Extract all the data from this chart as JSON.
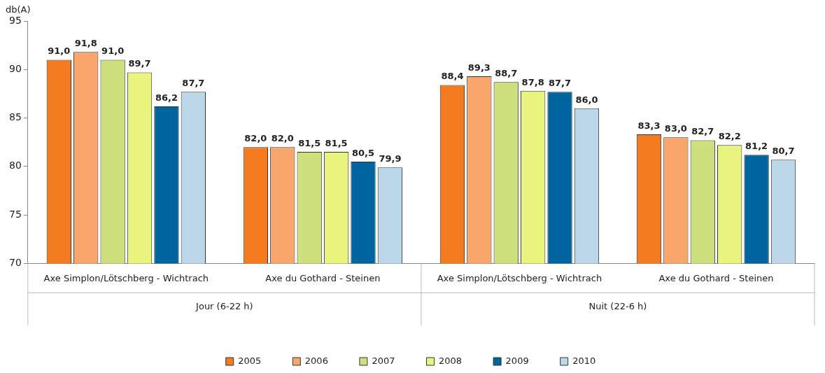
{
  "chart_data": {
    "type": "bar",
    "ylabel": "db(A)",
    "categories": [
      "Axe Simplon/Lötschberg - Wichtrach",
      "Axe du Gothard - Steinen",
      "Axe Simplon/Lötschberg - Wichtrach",
      "Axe du Gothard - Steinen"
    ],
    "annotations": [
      "Jour (6-22 h)",
      "Nuit (22-6 h)"
    ],
    "series": [
      {
        "name": "2005",
        "color": "#f47b20",
        "values": [
          91.0,
          82.0,
          88.4,
          83.3
        ],
        "value_labels": [
          "91,0",
          "82,0",
          "88,4",
          "83,3"
        ]
      },
      {
        "name": "2006",
        "color": "#f9a66c",
        "values": [
          91.8,
          82.0,
          89.3,
          83.0
        ],
        "value_labels": [
          "91,8",
          "82,0",
          "89,3",
          "83,0"
        ]
      },
      {
        "name": "2007",
        "color": "#cde07c",
        "values": [
          91.0,
          81.5,
          88.7,
          82.7
        ],
        "value_labels": [
          "91,0",
          "81,5",
          "88,7",
          "82,7"
        ]
      },
      {
        "name": "2008",
        "color": "#e9f47e",
        "values": [
          89.7,
          81.5,
          87.8,
          82.2
        ],
        "value_labels": [
          "89,7",
          "81,5",
          "87,8",
          "82,2"
        ]
      },
      {
        "name": "2009",
        "color": "#00649e",
        "values": [
          86.2,
          80.5,
          87.7,
          81.2
        ],
        "value_labels": [
          "86,2",
          "80,5",
          "87,7",
          "81,2"
        ]
      },
      {
        "name": "2010",
        "color": "#bcd8e8",
        "values": [
          87.7,
          79.9,
          86.0,
          80.7
        ],
        "value_labels": [
          "87,7",
          "79,9",
          "86,0",
          "80,7"
        ]
      }
    ],
    "ylim": [
      70,
      95
    ],
    "yticks": [
      70,
      75,
      80,
      85,
      90,
      95
    ],
    "grid": false,
    "legend": "bottom"
  }
}
